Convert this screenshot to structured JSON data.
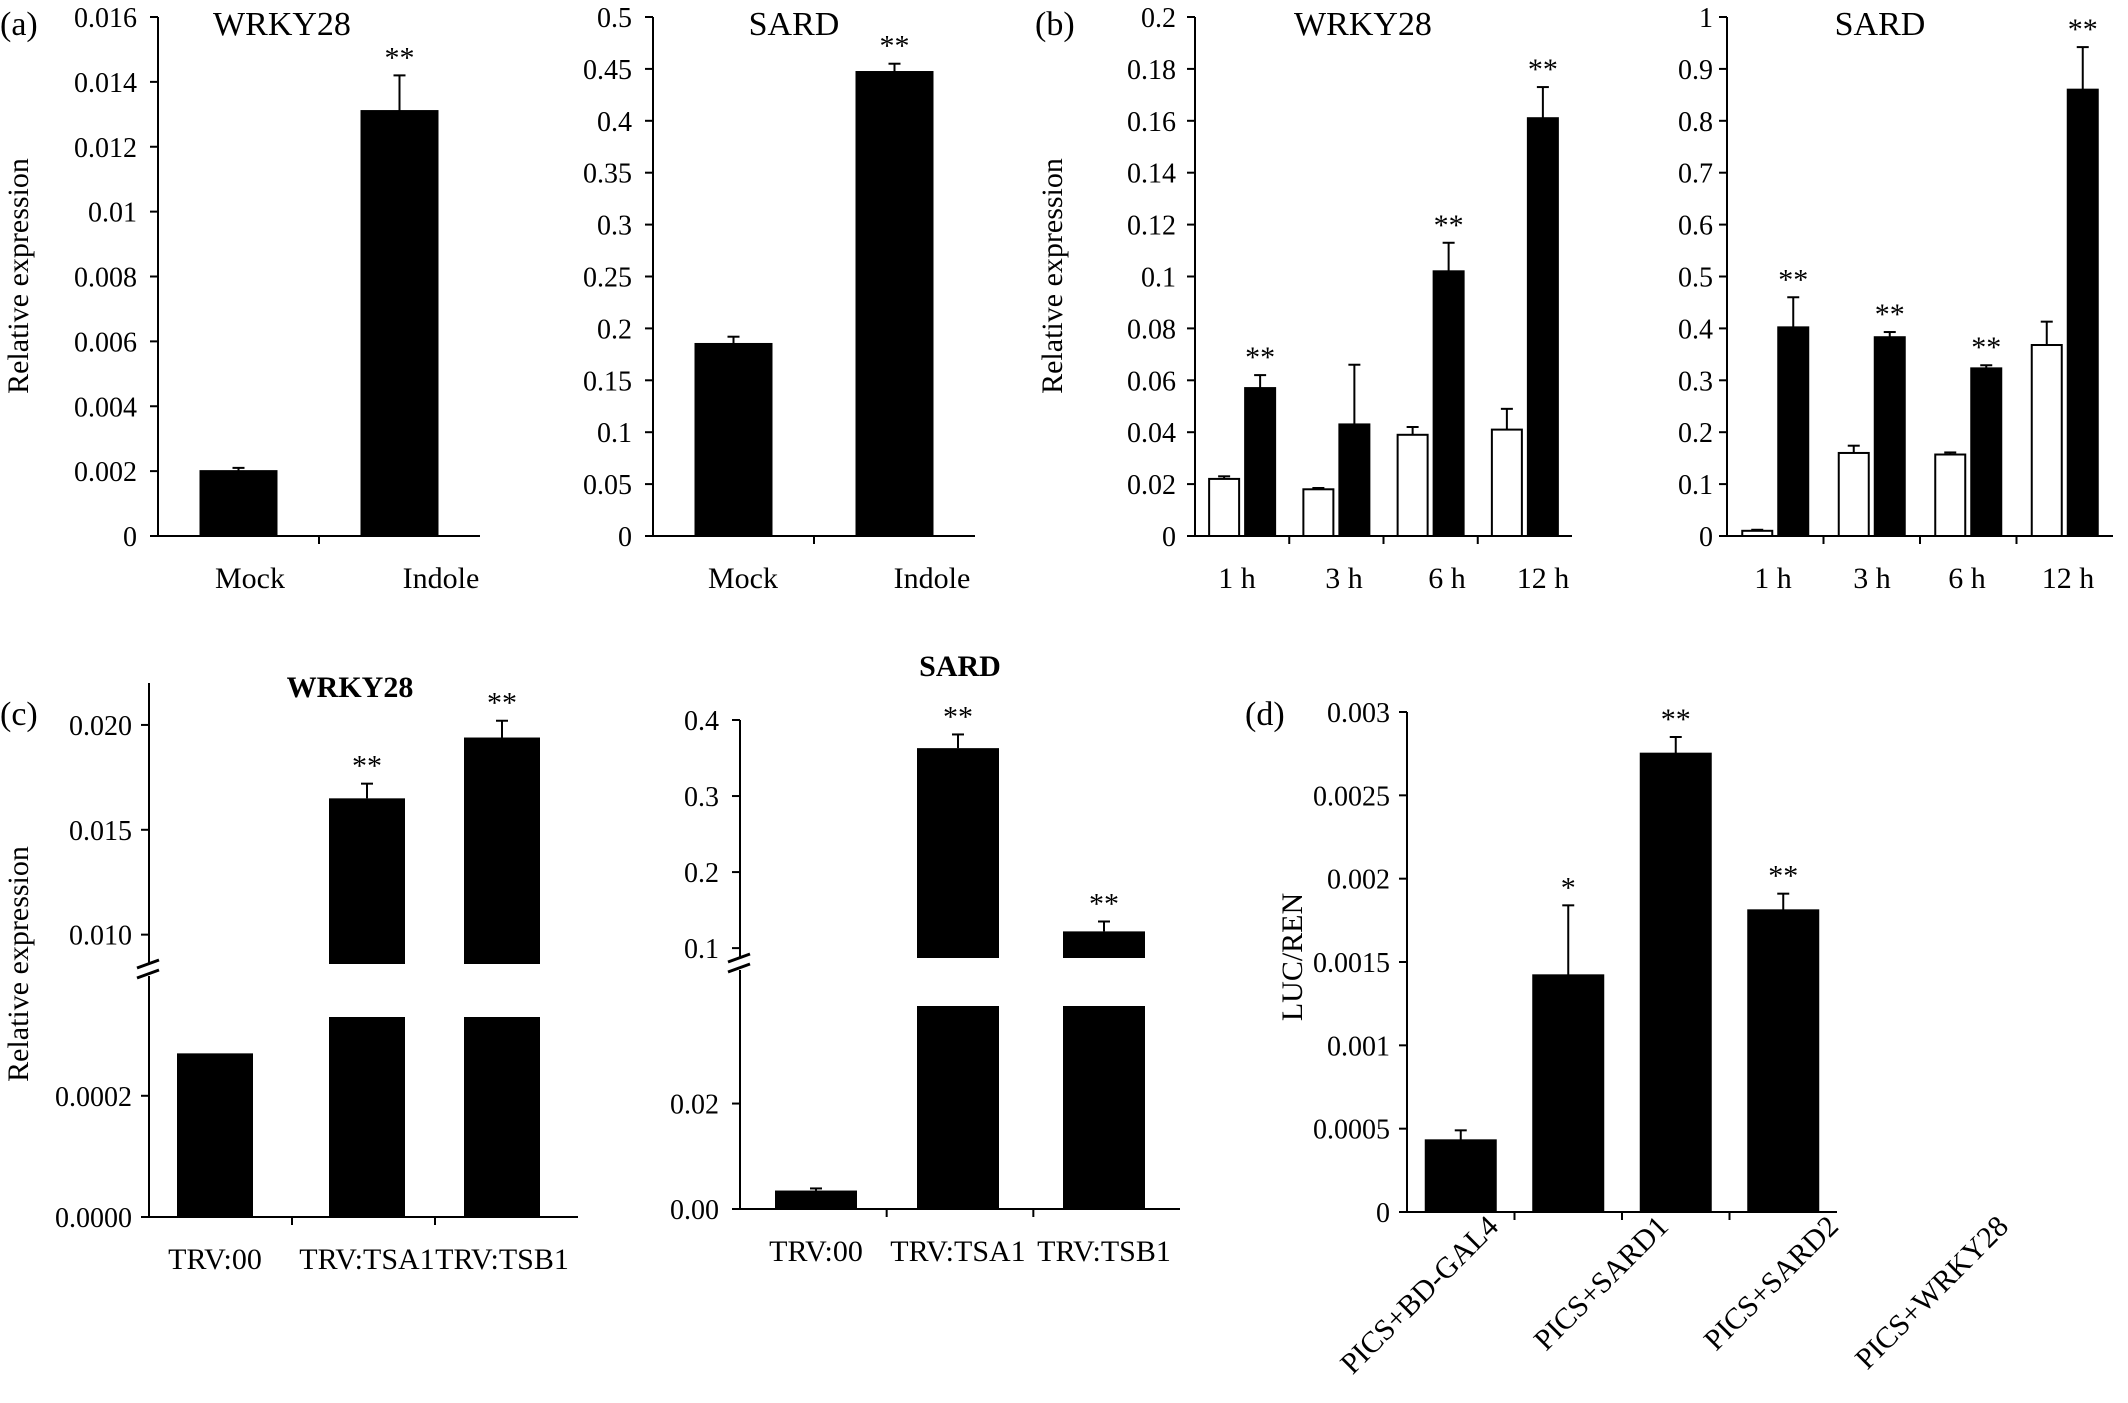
{
  "chart_data": [
    {
      "panel": "(a)",
      "type": "bar",
      "title": "WRKY28",
      "ylabel": "Relative expression",
      "xlabel": "",
      "ylim": [
        0,
        0.016
      ],
      "yticks": [
        "0",
        "0.002",
        "0.004",
        "0.006",
        "0.008",
        "0.01",
        "0.012",
        "0.014",
        "0.016"
      ],
      "categories": [
        "Mock",
        "Indole"
      ],
      "series": [
        {
          "values": [
            0.002,
            0.0131
          ],
          "errors": [
            0.0001,
            0.0011
          ]
        }
      ],
      "annotations": [
        "",
        "**"
      ]
    },
    {
      "panel": "",
      "type": "bar",
      "title": "SARD",
      "ylabel": "",
      "xlabel": "",
      "ylim": [
        0,
        0.5
      ],
      "yticks": [
        "0",
        "0.05",
        "0.1",
        "0.15",
        "0.2",
        "0.25",
        "0.3",
        "0.35",
        "0.4",
        "0.45",
        "0.5"
      ],
      "categories": [
        "Mock",
        "Indole"
      ],
      "series": [
        {
          "values": [
            0.185,
            0.447
          ],
          "errors": [
            0.007,
            0.008
          ]
        }
      ],
      "annotations": [
        "",
        "**"
      ]
    },
    {
      "panel": "(b)",
      "type": "bar",
      "title": "WRKY28",
      "ylabel": "Relative expression",
      "xlabel": "",
      "ylim": [
        0,
        0.2
      ],
      "yticks": [
        "0",
        "0.02",
        "0.04",
        "0.06",
        "0.08",
        "0.1",
        "0.12",
        "0.14",
        "0.16",
        "0.18",
        "0.2"
      ],
      "categories": [
        "1 h",
        "3 h",
        "6 h",
        "12 h"
      ],
      "series": [
        {
          "fill": "#ffffff",
          "values": [
            0.022,
            0.018,
            0.039,
            0.041
          ],
          "errors": [
            0.001,
            0.0005,
            0.003,
            0.008
          ]
        },
        {
          "fill": "#000000",
          "values": [
            0.057,
            0.043,
            0.102,
            0.161
          ],
          "errors": [
            0.005,
            0.023,
            0.011,
            0.012
          ]
        }
      ],
      "annotations": [
        "**",
        "",
        "**",
        "**"
      ]
    },
    {
      "panel": "",
      "type": "bar",
      "title": "SARD",
      "ylabel": "",
      "xlabel": "",
      "ylim": [
        0,
        1
      ],
      "yticks": [
        "0",
        "0.1",
        "0.2",
        "0.3",
        "0.4",
        "0.5",
        "0.6",
        "0.7",
        "0.8",
        "0.9",
        "1"
      ],
      "categories": [
        "1 h",
        "3 h",
        "6 h",
        "12 h"
      ],
      "series": [
        {
          "fill": "#ffffff",
          "values": [
            0.01,
            0.16,
            0.157,
            0.368
          ],
          "errors": [
            0.002,
            0.014,
            0.004,
            0.045
          ]
        },
        {
          "fill": "#000000",
          "values": [
            0.402,
            0.383,
            0.323,
            0.86
          ],
          "errors": [
            0.058,
            0.01,
            0.006,
            0.082
          ]
        }
      ],
      "annotations": [
        "**",
        "**",
        "**",
        "**"
      ]
    },
    {
      "panel": "(c)",
      "type": "bar",
      "title": "WRKY28",
      "ylabel": "Relative expression",
      "xlabel": "",
      "broken_axis": true,
      "ylim_lower": [
        0,
        0.00033
      ],
      "yticks_lower": [
        "0.0000",
        "0.0002"
      ],
      "ylim_upper": [
        0.0086,
        0.022
      ],
      "yticks_upper": [
        "0.010",
        "0.015",
        "0.020"
      ],
      "categories": [
        "TRV:00",
        "TRV:TSA1",
        "TRV:TSB1"
      ],
      "series": [
        {
          "values": [
            0.00027,
            0.0165,
            0.0194
          ],
          "errors": [
            0,
            0.0007,
            0.0008
          ]
        }
      ],
      "annotations": [
        "",
        "**",
        "**"
      ]
    },
    {
      "panel": "",
      "type": "bar",
      "title": "SARD",
      "ylabel": "",
      "xlabel": "",
      "broken_axis": true,
      "ylim_lower": [
        0,
        0.0385
      ],
      "yticks_lower": [
        "0.00",
        "0.02"
      ],
      "ylim_upper": [
        0.087,
        0.4
      ],
      "yticks_upper": [
        "0.1",
        "0.2",
        "0.3",
        "0.4"
      ],
      "categories": [
        "TRV:00",
        "TRV:TSA1",
        "TRV:TSB1"
      ],
      "series": [
        {
          "values": [
            0.0035,
            0.363,
            0.122
          ],
          "errors": [
            0.0004,
            0.018,
            0.013
          ]
        }
      ],
      "annotations": [
        "",
        "**",
        "**"
      ]
    },
    {
      "panel": "(d)",
      "type": "bar",
      "title": "",
      "ylabel": "LUC/REN",
      "xlabel": "",
      "ylim": [
        0,
        0.003
      ],
      "yticks": [
        "0",
        "0.0005",
        "0.001",
        "0.0015",
        "0.002",
        "0.0025",
        "0.003"
      ],
      "categories": [
        "PICS+BD-GAL4",
        "PICS+SARD1",
        "PICS+SARD2",
        "PICS+WRKY28"
      ],
      "series": [
        {
          "values": [
            0.00043,
            0.00142,
            0.00275,
            0.00181
          ],
          "errors": [
            6e-05,
            0.00042,
            0.0001,
            0.0001
          ]
        }
      ],
      "annotations": [
        "",
        "*",
        "**",
        "**"
      ]
    }
  ]
}
